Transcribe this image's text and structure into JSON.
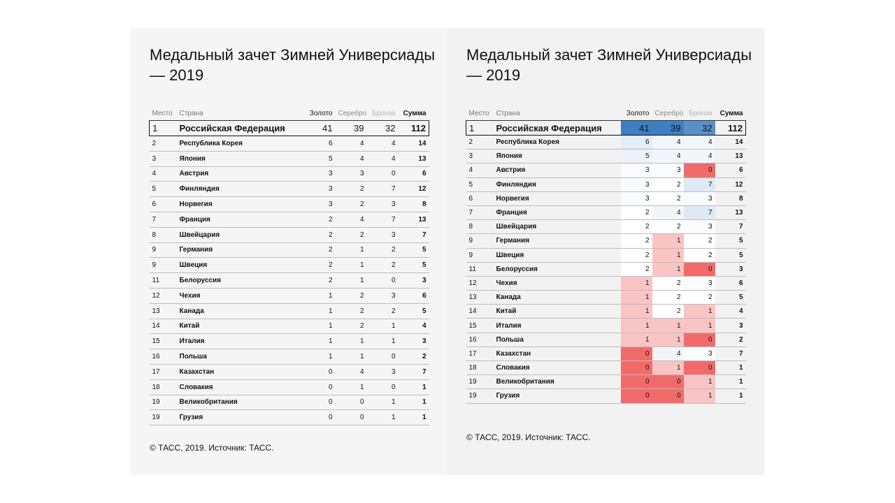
{
  "title": "Медальный зачет Зимней Универсиады — 2019",
  "source": "© ТАСС, 2019. Источник: ТАСС.",
  "columns": {
    "rank": "Место",
    "country": "Страна",
    "gold": "Золото",
    "silver": "Серебро",
    "bronze": "Бронза",
    "total": "Сумма"
  },
  "colors": {
    "blue_dark": "#3d7fc1",
    "blue_light": "#dfe9f5",
    "red_dark": "#f26b6b",
    "red_light": "#f9c4c4",
    "neutral": "#ffffff"
  },
  "chart_data": {
    "type": "table",
    "title": "Медальный зачет Зимней Универсиады — 2019",
    "columns": [
      "Место",
      "Страна",
      "Золото",
      "Серебро",
      "Бронза",
      "Сумма"
    ],
    "rows": [
      {
        "rank": "1",
        "country": "Российская Федерация",
        "gold": 41,
        "silver": 39,
        "bronze": 32,
        "total": 112
      },
      {
        "rank": "2",
        "country": "Республика Корея",
        "gold": 6,
        "silver": 4,
        "bronze": 4,
        "total": 14
      },
      {
        "rank": "3",
        "country": "Япония",
        "gold": 5,
        "silver": 4,
        "bronze": 4,
        "total": 13
      },
      {
        "rank": "4",
        "country": "Австрия",
        "gold": 3,
        "silver": 3,
        "bronze": 0,
        "total": 6
      },
      {
        "rank": "5",
        "country": "Финляндия",
        "gold": 3,
        "silver": 2,
        "bronze": 7,
        "total": 12
      },
      {
        "rank": "6",
        "country": "Норвегия",
        "gold": 3,
        "silver": 2,
        "bronze": 3,
        "total": 8
      },
      {
        "rank": "7",
        "country": "Франция",
        "gold": 2,
        "silver": 4,
        "bronze": 7,
        "total": 13
      },
      {
        "rank": "8",
        "country": "Швейцария",
        "gold": 2,
        "silver": 2,
        "bronze": 3,
        "total": 7
      },
      {
        "rank": "9",
        "country": "Германия",
        "gold": 2,
        "silver": 1,
        "bronze": 2,
        "total": 5
      },
      {
        "rank": "9",
        "country": "Швеция",
        "gold": 2,
        "silver": 1,
        "bronze": 2,
        "total": 5
      },
      {
        "rank": "11",
        "country": "Белоруссия",
        "gold": 2,
        "silver": 1,
        "bronze": 0,
        "total": 3
      },
      {
        "rank": "12",
        "country": "Чехия",
        "gold": 1,
        "silver": 2,
        "bronze": 3,
        "total": 6
      },
      {
        "rank": "13",
        "country": "Канада",
        "gold": 1,
        "silver": 2,
        "bronze": 2,
        "total": 5
      },
      {
        "rank": "14",
        "country": "Китай",
        "gold": 1,
        "silver": 2,
        "bronze": 1,
        "total": 4
      },
      {
        "rank": "15",
        "country": "Италия",
        "gold": 1,
        "silver": 1,
        "bronze": 1,
        "total": 3
      },
      {
        "rank": "16",
        "country": "Польша",
        "gold": 1,
        "silver": 1,
        "bronze": 0,
        "total": 2
      },
      {
        "rank": "17",
        "country": "Казахстан",
        "gold": 0,
        "silver": 4,
        "bronze": 3,
        "total": 7
      },
      {
        "rank": "18",
        "country": "Словакия",
        "gold": 0,
        "silver": 1,
        "bronze": 0,
        "total": 1
      },
      {
        "rank": "19",
        "country": "Великобритания",
        "gold": 0,
        "silver": 0,
        "bronze": 1,
        "total": 1
      },
      {
        "rank": "19",
        "country": "Грузия",
        "gold": 0,
        "silver": 0,
        "bronze": 1,
        "total": 1
      }
    ]
  }
}
